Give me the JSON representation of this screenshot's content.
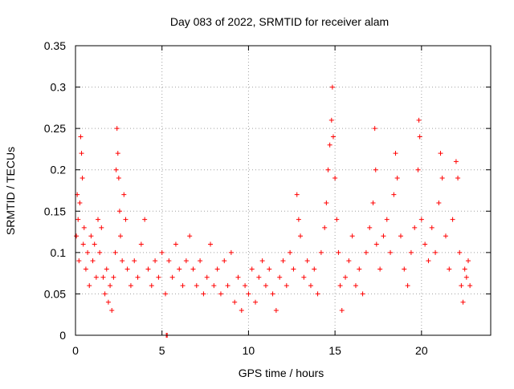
{
  "chart_data": {
    "type": "scatter",
    "title": "Day 083 of 2022, SRMTID for receiver alam",
    "xlabel": "GPS time / hours",
    "ylabel": "SRMTID / TECUs",
    "xlim": [
      0,
      24.0
    ],
    "ylim": [
      0,
      0.35
    ],
    "xticks": [
      0,
      5,
      10,
      15,
      20
    ],
    "yticks": [
      0,
      0.05,
      0.1,
      0.15,
      0.2,
      0.25,
      0.3,
      0.35
    ],
    "ytick_labels": [
      "0",
      "0.05",
      "0.1",
      "0.15",
      "0.2",
      "0.25",
      "0.3",
      "0.35"
    ],
    "grid": true,
    "marker": "+",
    "series": [
      {
        "name": "SRMTID",
        "color": "#ff0000",
        "points": [
          [
            0.05,
            0.12
          ],
          [
            0.1,
            0.17
          ],
          [
            0.15,
            0.14
          ],
          [
            0.2,
            0.09
          ],
          [
            0.25,
            0.16
          ],
          [
            0.3,
            0.24
          ],
          [
            0.35,
            0.22
          ],
          [
            0.4,
            0.19
          ],
          [
            0.45,
            0.11
          ],
          [
            0.5,
            0.13
          ],
          [
            0.6,
            0.08
          ],
          [
            0.7,
            0.1
          ],
          [
            0.8,
            0.06
          ],
          [
            0.9,
            0.12
          ],
          [
            1.0,
            0.09
          ],
          [
            1.1,
            0.11
          ],
          [
            1.2,
            0.07
          ],
          [
            1.3,
            0.14
          ],
          [
            1.4,
            0.1
          ],
          [
            1.5,
            0.13
          ],
          [
            1.6,
            0.07
          ],
          [
            1.7,
            0.05
          ],
          [
            1.8,
            0.08
          ],
          [
            1.9,
            0.04
          ],
          [
            2.0,
            0.06
          ],
          [
            2.1,
            0.03
          ],
          [
            2.2,
            0.07
          ],
          [
            2.3,
            0.1
          ],
          [
            2.35,
            0.2
          ],
          [
            2.4,
            0.25
          ],
          [
            2.45,
            0.22
          ],
          [
            2.5,
            0.19
          ],
          [
            2.55,
            0.15
          ],
          [
            2.6,
            0.12
          ],
          [
            2.7,
            0.09
          ],
          [
            2.8,
            0.17
          ],
          [
            2.9,
            0.14
          ],
          [
            3.0,
            0.08
          ],
          [
            3.2,
            0.06
          ],
          [
            3.4,
            0.09
          ],
          [
            3.6,
            0.07
          ],
          [
            3.8,
            0.11
          ],
          [
            4.0,
            0.14
          ],
          [
            4.2,
            0.08
          ],
          [
            4.4,
            0.06
          ],
          [
            4.6,
            0.09
          ],
          [
            4.8,
            0.07
          ],
          [
            5.0,
            0.1
          ],
          [
            5.2,
            0.05
          ],
          [
            5.4,
            0.09
          ],
          [
            5.3,
            0.0
          ],
          [
            5.25,
            0.0
          ],
          [
            5.6,
            0.07
          ],
          [
            5.8,
            0.11
          ],
          [
            6.0,
            0.08
          ],
          [
            6.2,
            0.06
          ],
          [
            6.4,
            0.09
          ],
          [
            6.6,
            0.12
          ],
          [
            6.8,
            0.08
          ],
          [
            7.0,
            0.06
          ],
          [
            7.2,
            0.09
          ],
          [
            7.4,
            0.05
          ],
          [
            7.6,
            0.07
          ],
          [
            7.8,
            0.11
          ],
          [
            8.0,
            0.06
          ],
          [
            8.2,
            0.08
          ],
          [
            8.4,
            0.05
          ],
          [
            8.6,
            0.09
          ],
          [
            8.8,
            0.06
          ],
          [
            9.0,
            0.1
          ],
          [
            9.2,
            0.04
          ],
          [
            9.4,
            0.07
          ],
          [
            9.6,
            0.03
          ],
          [
            9.8,
            0.06
          ],
          [
            10.0,
            0.05
          ],
          [
            10.2,
            0.08
          ],
          [
            10.4,
            0.04
          ],
          [
            10.6,
            0.07
          ],
          [
            10.8,
            0.09
          ],
          [
            11.0,
            0.06
          ],
          [
            11.2,
            0.08
          ],
          [
            11.4,
            0.05
          ],
          [
            11.6,
            0.03
          ],
          [
            11.8,
            0.07
          ],
          [
            12.0,
            0.09
          ],
          [
            12.2,
            0.06
          ],
          [
            12.4,
            0.1
          ],
          [
            12.6,
            0.08
          ],
          [
            12.8,
            0.17
          ],
          [
            12.9,
            0.14
          ],
          [
            13.0,
            0.12
          ],
          [
            13.2,
            0.07
          ],
          [
            13.4,
            0.09
          ],
          [
            13.6,
            0.06
          ],
          [
            13.8,
            0.08
          ],
          [
            14.0,
            0.05
          ],
          [
            14.2,
            0.1
          ],
          [
            14.4,
            0.13
          ],
          [
            14.5,
            0.16
          ],
          [
            14.6,
            0.2
          ],
          [
            14.7,
            0.23
          ],
          [
            14.8,
            0.26
          ],
          [
            14.85,
            0.3
          ],
          [
            14.9,
            0.24
          ],
          [
            15.0,
            0.19
          ],
          [
            15.1,
            0.14
          ],
          [
            15.2,
            0.1
          ],
          [
            15.3,
            0.06
          ],
          [
            15.4,
            0.03
          ],
          [
            15.6,
            0.07
          ],
          [
            15.8,
            0.09
          ],
          [
            16.0,
            0.12
          ],
          [
            16.2,
            0.06
          ],
          [
            16.4,
            0.08
          ],
          [
            16.6,
            0.05
          ],
          [
            16.8,
            0.1
          ],
          [
            17.0,
            0.13
          ],
          [
            17.2,
            0.16
          ],
          [
            17.3,
            0.25
          ],
          [
            17.35,
            0.2
          ],
          [
            17.4,
            0.11
          ],
          [
            17.6,
            0.08
          ],
          [
            17.8,
            0.12
          ],
          [
            18.0,
            0.14
          ],
          [
            18.2,
            0.1
          ],
          [
            18.4,
            0.17
          ],
          [
            18.5,
            0.22
          ],
          [
            18.6,
            0.19
          ],
          [
            18.8,
            0.12
          ],
          [
            19.0,
            0.08
          ],
          [
            19.2,
            0.06
          ],
          [
            19.4,
            0.1
          ],
          [
            19.6,
            0.13
          ],
          [
            19.8,
            0.2
          ],
          [
            19.85,
            0.26
          ],
          [
            19.9,
            0.24
          ],
          [
            20.0,
            0.14
          ],
          [
            20.2,
            0.11
          ],
          [
            20.4,
            0.09
          ],
          [
            20.6,
            0.13
          ],
          [
            20.8,
            0.1
          ],
          [
            21.0,
            0.16
          ],
          [
            21.1,
            0.22
          ],
          [
            21.2,
            0.19
          ],
          [
            21.4,
            0.12
          ],
          [
            21.6,
            0.08
          ],
          [
            21.8,
            0.14
          ],
          [
            22.0,
            0.21
          ],
          [
            22.1,
            0.19
          ],
          [
            22.2,
            0.1
          ],
          [
            22.3,
            0.06
          ],
          [
            22.4,
            0.04
          ],
          [
            22.5,
            0.08
          ],
          [
            22.6,
            0.07
          ],
          [
            22.7,
            0.09
          ],
          [
            22.8,
            0.06
          ]
        ]
      }
    ]
  }
}
